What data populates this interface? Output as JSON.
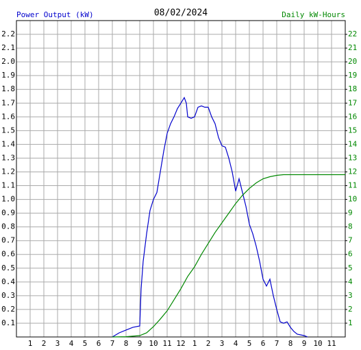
{
  "chart_data": {
    "type": "line",
    "title": "08/02/2024",
    "y_label": "Power Output (kW)",
    "y2_label": "Daily kW-Hours",
    "xlim": [
      0,
      24
    ],
    "xticks": [
      {
        "value": 1,
        "label": "1"
      },
      {
        "value": 2,
        "label": "2"
      },
      {
        "value": 3,
        "label": "3"
      },
      {
        "value": 4,
        "label": "4"
      },
      {
        "value": 5,
        "label": "5"
      },
      {
        "value": 6,
        "label": "6"
      },
      {
        "value": 7,
        "label": "7"
      },
      {
        "value": 8,
        "label": "8"
      },
      {
        "value": 9,
        "label": "9"
      },
      {
        "value": 10,
        "label": "10"
      },
      {
        "value": 11,
        "label": "11"
      },
      {
        "value": 12,
        "label": "12"
      },
      {
        "value": 13,
        "label": "1"
      },
      {
        "value": 14,
        "label": "2"
      },
      {
        "value": 15,
        "label": "3"
      },
      {
        "value": 16,
        "label": "4"
      },
      {
        "value": 17,
        "label": "5"
      },
      {
        "value": 18,
        "label": "6"
      },
      {
        "value": 19,
        "label": "7"
      },
      {
        "value": 20,
        "label": "8"
      },
      {
        "value": 21,
        "label": "9"
      },
      {
        "value": 22,
        "label": "10"
      },
      {
        "value": 23,
        "label": "11"
      }
    ],
    "ylim": [
      0,
      2.3
    ],
    "yticks": [
      0.1,
      0.2,
      0.3,
      0.4,
      0.5,
      0.6,
      0.7,
      0.8,
      0.9,
      {
        "value": 1,
        "label": "1.0"
      },
      1.1,
      1.2,
      1.3,
      1.4,
      1.5,
      1.6,
      1.7,
      1.8,
      1.9,
      {
        "value": 2,
        "label": "2.0"
      },
      2.1,
      2.2
    ],
    "y2lim": [
      0,
      23
    ],
    "y2ticks": [
      1,
      2,
      3,
      4,
      5,
      6,
      7,
      8,
      9,
      10,
      11,
      12,
      13,
      14,
      15,
      16,
      17,
      18,
      19,
      20,
      21,
      22
    ],
    "grid": true,
    "series": [
      {
        "name": "Power Output (kW)",
        "color": "#0000cc",
        "x": [
          7,
          7.5,
          8,
          8.5,
          9,
          9.1,
          9.25,
          9.5,
          9.75,
          10,
          10.25,
          10.5,
          10.75,
          11,
          11.25,
          11.5,
          11.75,
          12,
          12.25,
          12.4,
          12.5,
          12.75,
          13,
          13.25,
          13.5,
          13.75,
          14,
          14.25,
          14.5,
          14.75,
          15,
          15.25,
          15.5,
          15.75,
          16,
          16.25,
          16.5,
          16.75,
          17,
          17.25,
          17.5,
          17.75,
          18,
          18.25,
          18.5,
          18.75,
          19,
          19.25,
          19.5,
          19.75,
          20,
          20.25,
          20.5,
          21,
          21.25
        ],
        "values": [
          0.0,
          0.03,
          0.05,
          0.07,
          0.08,
          0.35,
          0.55,
          0.75,
          0.92,
          1.0,
          1.05,
          1.2,
          1.35,
          1.48,
          1.55,
          1.6,
          1.66,
          1.7,
          1.74,
          1.7,
          1.6,
          1.59,
          1.6,
          1.67,
          1.68,
          1.67,
          1.67,
          1.6,
          1.55,
          1.45,
          1.39,
          1.38,
          1.3,
          1.2,
          1.06,
          1.15,
          1.05,
          0.95,
          0.82,
          0.75,
          0.66,
          0.55,
          0.42,
          0.37,
          0.42,
          0.3,
          0.2,
          0.11,
          0.1,
          0.11,
          0.07,
          0.04,
          0.02,
          0.01,
          0.0
        ]
      },
      {
        "name": "Daily kW-Hours",
        "color": "#008800",
        "axis": "y2",
        "x": [
          7,
          8,
          9,
          9.5,
          10,
          10.5,
          11,
          11.5,
          12,
          12.5,
          13,
          13.5,
          14,
          14.5,
          15,
          15.5,
          16,
          16.5,
          17,
          17.5,
          18,
          18.5,
          19,
          19.5,
          20,
          24
        ],
        "values": [
          0,
          0.02,
          0.1,
          0.3,
          0.75,
          1.3,
          1.9,
          2.7,
          3.5,
          4.4,
          5.1,
          6.0,
          6.8,
          7.6,
          8.3,
          9.0,
          9.7,
          10.3,
          10.8,
          11.2,
          11.5,
          11.65,
          11.75,
          11.8,
          11.8,
          11.8
        ]
      }
    ]
  }
}
